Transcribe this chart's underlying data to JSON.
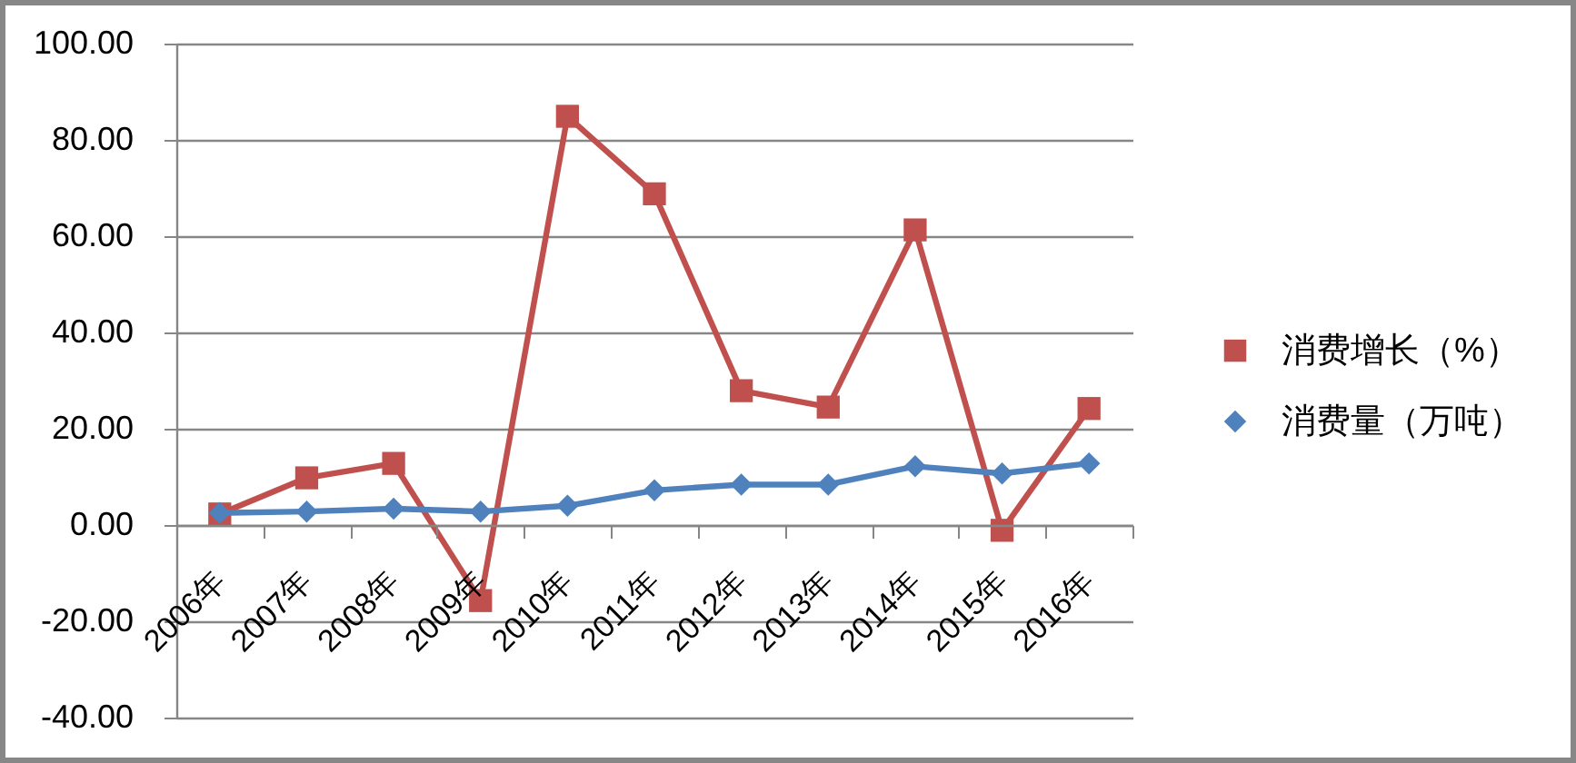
{
  "chart_data": {
    "type": "line",
    "categories": [
      "2006年",
      "2007年",
      "2008年",
      "2009年",
      "2010年",
      "2011年",
      "2012年",
      "2013年",
      "2014年",
      "2015年",
      "2016年"
    ],
    "series": [
      {
        "name": "消费增长（%）",
        "color": "#c0504d",
        "marker": "square",
        "values": [
          2.3,
          9.8,
          12.8,
          -15.7,
          84.9,
          68.8,
          27.9,
          24.5,
          61.3,
          -1.1,
          24.2
        ]
      },
      {
        "name": "消费量（万吨）",
        "color": "#4f81bd",
        "marker": "diamond",
        "values": [
          2.5,
          2.8,
          3.4,
          2.8,
          4.0,
          7.2,
          8.4,
          8.4,
          12.2,
          10.7,
          12.8
        ]
      }
    ],
    "ylim": [
      -40,
      100
    ],
    "yticks": [
      {
        "value": -40,
        "label": "-40.00"
      },
      {
        "value": -20,
        "label": "-20.00"
      },
      {
        "value": 0,
        "label": "0.00"
      },
      {
        "value": 20,
        "label": "20.00"
      },
      {
        "value": 40,
        "label": "40.00"
      },
      {
        "value": 60,
        "label": "60.00"
      },
      {
        "value": 80,
        "label": "80.00"
      },
      {
        "value": 100,
        "label": "100.00"
      }
    ],
    "grid": "y",
    "legend": "right",
    "line_style": "solid"
  }
}
